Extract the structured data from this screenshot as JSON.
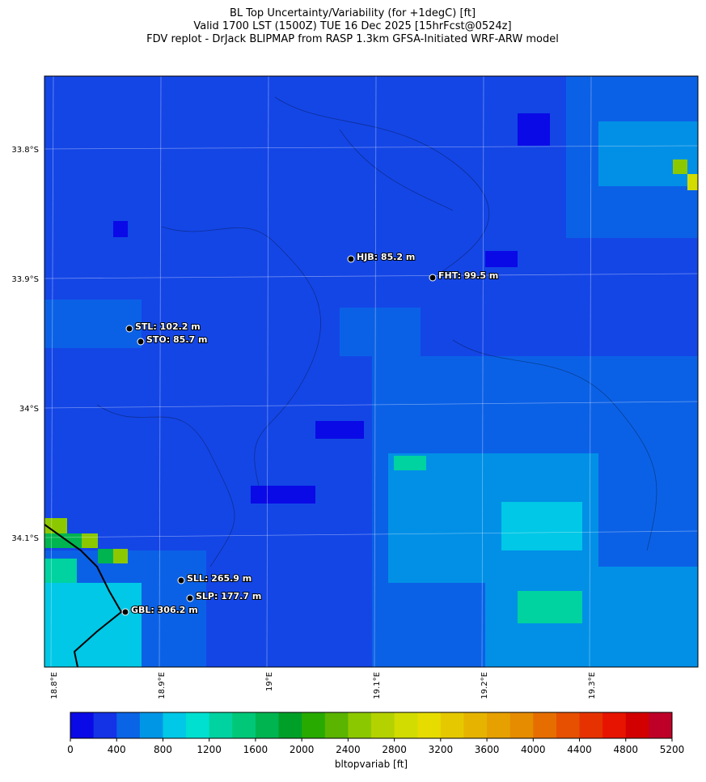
{
  "title": [
    "BL Top Uncertainty/Variability (for +1degC) [ft]",
    "Valid 1700 LST (1500Z) TUE 16 Dec 2025 [15hrFcst@0524z]",
    "FDV replot - DrJack BLIPMAP from RASP 1.3km GFSA-Initiated WRF-ARW model"
  ],
  "map": {
    "lat_labels": [
      "33.8°S",
      "33.9°S",
      "34°S",
      "34.1°S"
    ],
    "lon_labels": [
      "18.8°E",
      "18.9°E",
      "19°E",
      "19.1°E",
      "19.2°E",
      "19.3°E"
    ],
    "stations": [
      "HJB: 85.2 m",
      "FHT: 99.5 m",
      "STL: 102.2 m",
      "STO: 85.7 m",
      "SLL: 265.9 m",
      "SLP: 177.7 m",
      "GBL: 306.2 m"
    ]
  },
  "colorbar": {
    "label": "bltopvariab [ft]",
    "lim": [
      0,
      5200
    ],
    "ticks": [
      0,
      400,
      800,
      1200,
      1600,
      2000,
      2400,
      2800,
      3200,
      3600,
      4000,
      4400,
      4800,
      5200
    ],
    "colors": [
      "#0a0ae6",
      "#1432e6",
      "#0a64e6",
      "#0096e6",
      "#00c8e6",
      "#00e0d0",
      "#00d2a0",
      "#00c878",
      "#00b450",
      "#00a028",
      "#28aa00",
      "#5ab400",
      "#8cc800",
      "#b4d200",
      "#d2dc00",
      "#e6dc00",
      "#e6c800",
      "#e6b400",
      "#e6a000",
      "#e68c00",
      "#e66e00",
      "#e65000",
      "#e63200",
      "#e61400",
      "#d20000",
      "#be0028"
    ]
  }
}
